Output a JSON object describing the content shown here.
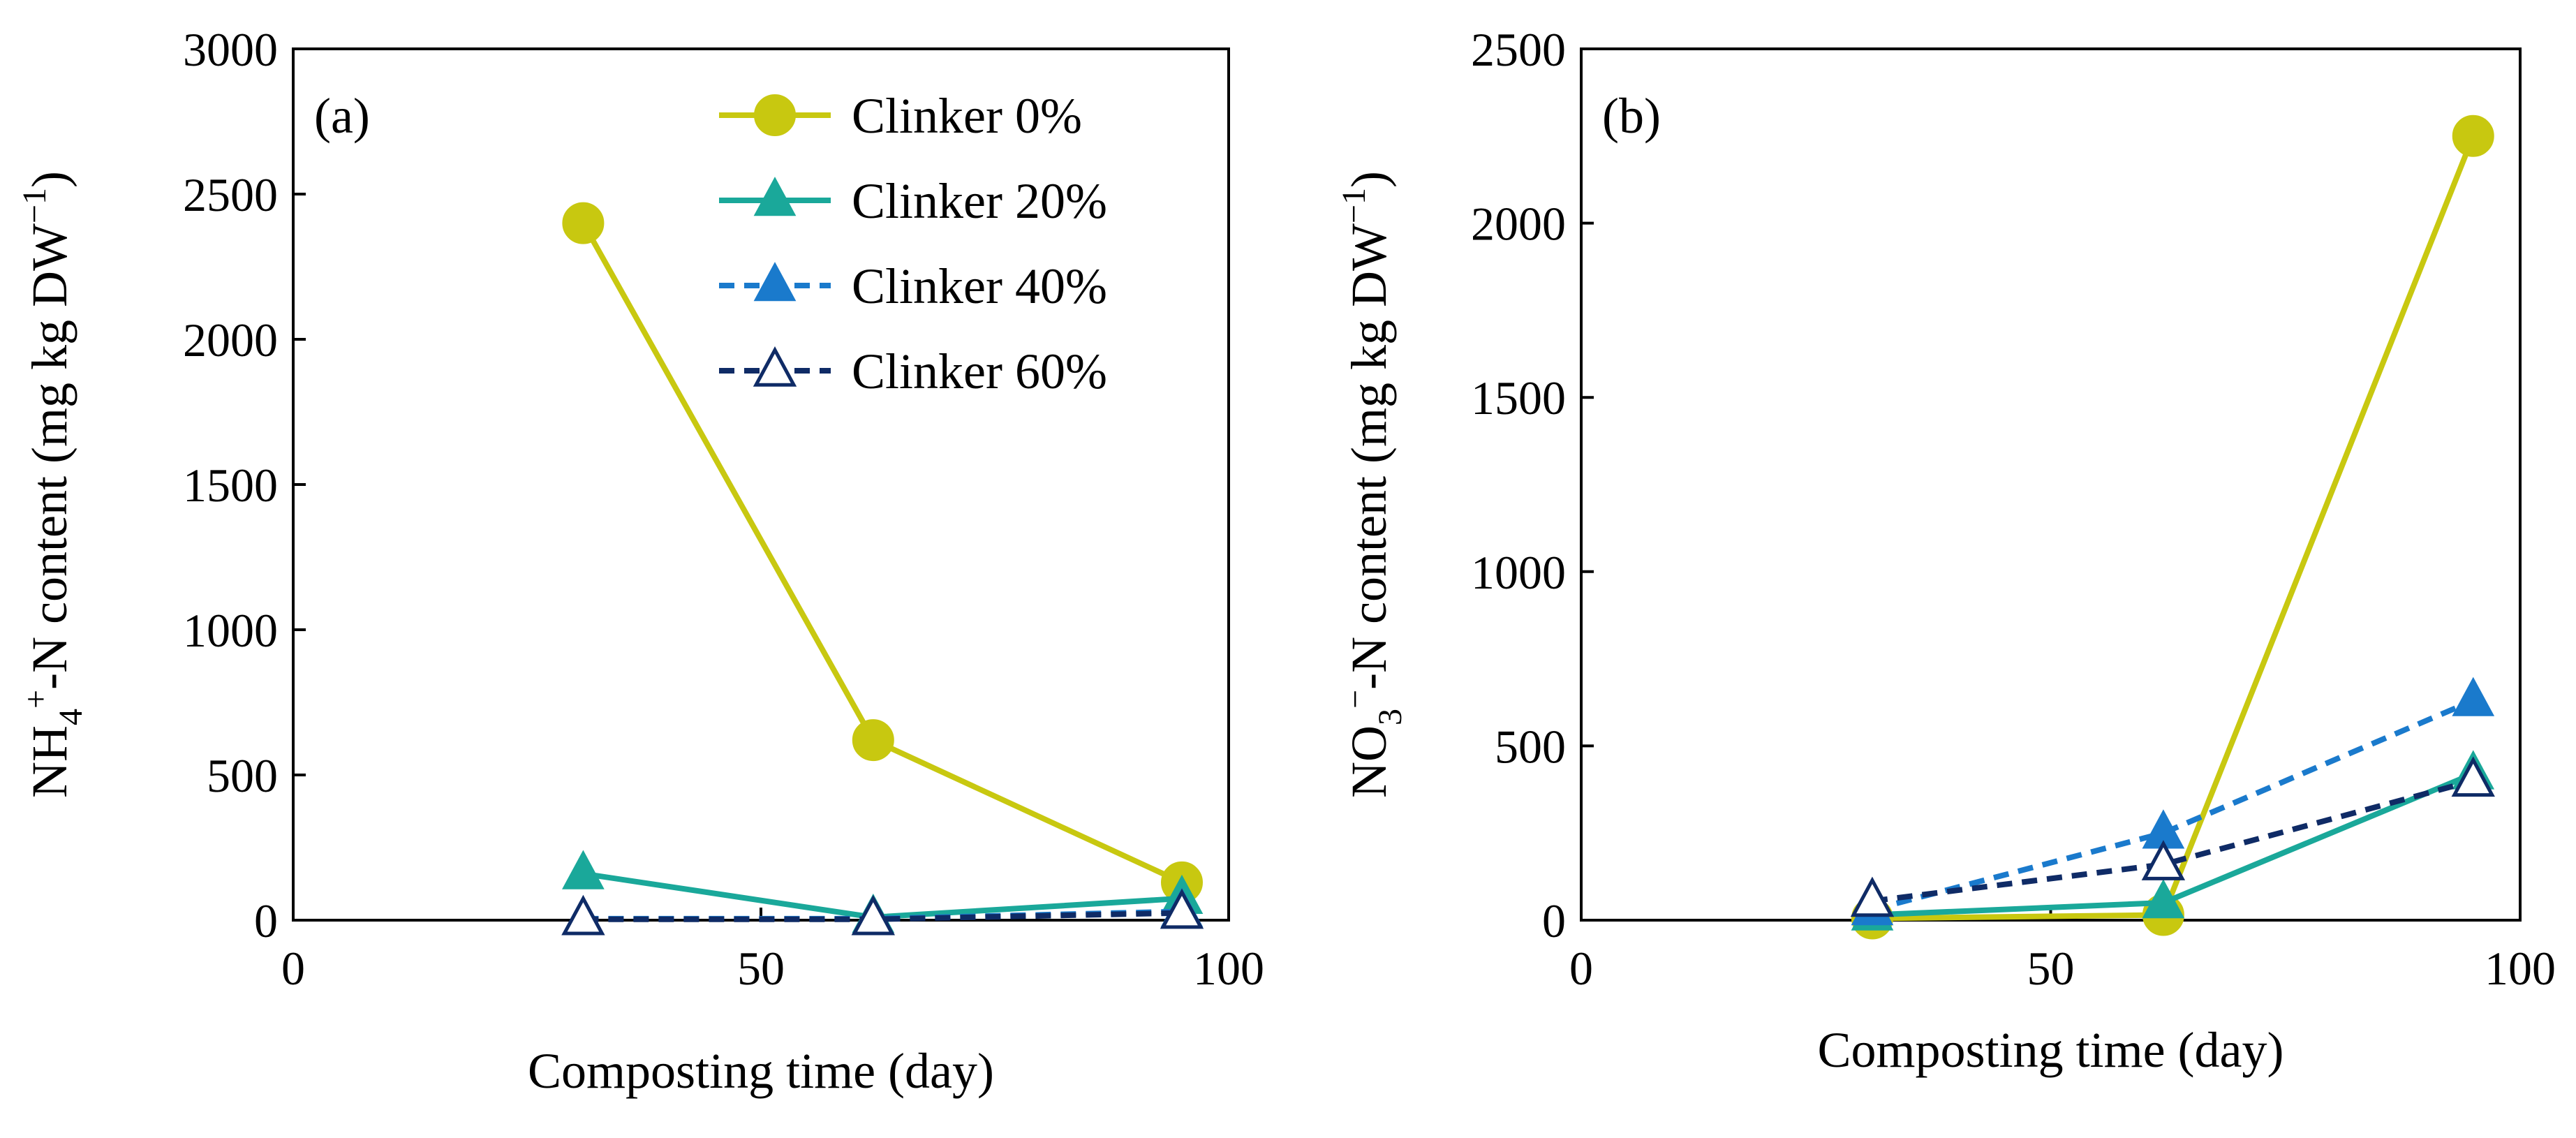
{
  "chart_data": [
    {
      "type": "line",
      "panel_label": "(a)",
      "ylabel": {
        "prefix": "NH",
        "sub": "4",
        "sup": "+",
        "mid": "-N content (mg  kg DW",
        "sup2": "−1",
        "suffix": ")"
      },
      "xlabel": "Composting time (day)",
      "xlim": [
        0,
        100
      ],
      "ylim": [
        0,
        3000
      ],
      "xticks": [
        0,
        50,
        100
      ],
      "yticks": [
        0,
        500,
        1000,
        1500,
        2000,
        2500,
        3000
      ],
      "x": [
        31,
        62,
        95
      ],
      "series": [
        {
          "name": "Clinker 0%",
          "values": [
            2400,
            620,
            130
          ]
        },
        {
          "name": "Clinker 20%",
          "values": [
            160,
            10,
            75
          ]
        },
        {
          "name": "Clinker 40%",
          "values": [
            5,
            5,
            30
          ]
        },
        {
          "name": "Clinker 60%",
          "values": [
            3,
            3,
            25
          ]
        }
      ],
      "legend": {
        "location": "top-right"
      }
    },
    {
      "type": "line",
      "panel_label": "(b)",
      "ylabel": {
        "prefix": "NO",
        "sub": "3",
        "sup": "−",
        "mid": "-N content (mg  kg DW",
        "sup2": "−1",
        "suffix": ")"
      },
      "xlabel": "Composting time (day)",
      "xlim": [
        0,
        100
      ],
      "ylim": [
        0,
        2500
      ],
      "xticks": [
        0,
        50,
        100
      ],
      "yticks": [
        0,
        500,
        1000,
        1500,
        2000,
        2500
      ],
      "x": [
        31,
        62,
        95
      ],
      "series": [
        {
          "name": "Clinker 0%",
          "values": [
            5,
            15,
            2250
          ]
        },
        {
          "name": "Clinker 20%",
          "values": [
            15,
            50,
            420
          ]
        },
        {
          "name": "Clinker 40%",
          "values": [
            30,
            250,
            630
          ]
        },
        {
          "name": "Clinker 60%",
          "values": [
            55,
            160,
            400
          ]
        }
      ]
    }
  ],
  "styles": [
    {
      "color": "#c8c810",
      "dash": "",
      "marker": "circle",
      "filled": true
    },
    {
      "color": "#1aa89a",
      "dash": "",
      "marker": "triangle",
      "filled": true
    },
    {
      "color": "#1a7acc",
      "dash": "22 14",
      "marker": "triangle",
      "filled": true
    },
    {
      "color": "#0f2b66",
      "dash": "22 14",
      "marker": "triangle",
      "filled": false
    }
  ]
}
